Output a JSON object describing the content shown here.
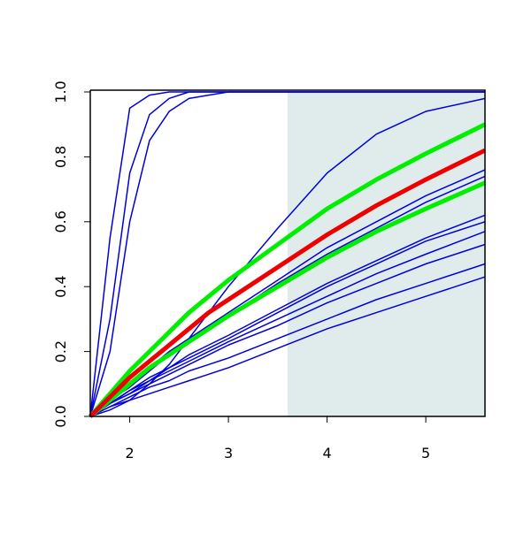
{
  "chart_data": {
    "type": "line",
    "x": [
      1.6,
      1.8,
      2.0,
      2.2,
      2.4,
      2.6,
      2.8,
      3.0,
      3.5,
      4.0,
      4.5,
      5.0,
      5.6
    ],
    "series": [
      {
        "color": "#0000dd",
        "width": 1.5,
        "values": [
          0,
          0.55,
          0.95,
          0.99,
          1,
          1,
          1,
          1,
          1,
          1,
          1,
          1,
          1
        ]
      },
      {
        "color": "#0000dd",
        "width": 1.5,
        "values": [
          0,
          0.3,
          0.75,
          0.93,
          0.98,
          1,
          1,
          1,
          1,
          1,
          1,
          1,
          1
        ]
      },
      {
        "color": "#0000dd",
        "width": 1.5,
        "values": [
          0,
          0.2,
          0.6,
          0.85,
          0.94,
          0.98,
          0.99,
          1,
          1,
          1,
          1,
          1,
          1
        ]
      },
      {
        "color": "#0000dd",
        "width": 1.5,
        "values": [
          0,
          0.02,
          0.05,
          0.1,
          0.16,
          0.24,
          0.32,
          0.4,
          0.58,
          0.75,
          0.87,
          0.94,
          0.98
        ]
      },
      {
        "color": "#0000dd",
        "width": 1.5,
        "values": [
          0,
          0.05,
          0.1,
          0.15,
          0.2,
          0.24,
          0.28,
          0.32,
          0.42,
          0.52,
          0.6,
          0.68,
          0.76
        ]
      },
      {
        "color": "#0000dd",
        "width": 1.5,
        "values": [
          0,
          0.05,
          0.09,
          0.14,
          0.19,
          0.23,
          0.27,
          0.31,
          0.41,
          0.5,
          0.58,
          0.66,
          0.74
        ]
      },
      {
        "color": "#0000dd",
        "width": 1.5,
        "values": [
          0,
          0.04,
          0.08,
          0.12,
          0.15,
          0.19,
          0.22,
          0.25,
          0.33,
          0.41,
          0.48,
          0.55,
          0.62
        ]
      },
      {
        "color": "#0000dd",
        "width": 1.5,
        "values": [
          0,
          0.04,
          0.08,
          0.11,
          0.15,
          0.18,
          0.21,
          0.24,
          0.32,
          0.4,
          0.47,
          0.54,
          0.6
        ]
      },
      {
        "color": "#0000dd",
        "width": 1.5,
        "values": [
          0,
          0.04,
          0.07,
          0.11,
          0.14,
          0.17,
          0.2,
          0.23,
          0.3,
          0.37,
          0.44,
          0.5,
          0.57
        ]
      },
      {
        "color": "#0000dd",
        "width": 1.5,
        "values": [
          0,
          0.04,
          0.07,
          0.1,
          0.13,
          0.16,
          0.19,
          0.22,
          0.28,
          0.35,
          0.41,
          0.47,
          0.53
        ]
      },
      {
        "color": "#0000dd",
        "width": 1.5,
        "values": [
          0,
          0.03,
          0.06,
          0.09,
          0.11,
          0.14,
          0.16,
          0.18,
          0.24,
          0.3,
          0.36,
          0.41,
          0.47
        ]
      },
      {
        "color": "#0000dd",
        "width": 1.5,
        "values": [
          0,
          0.03,
          0.05,
          0.07,
          0.09,
          0.11,
          0.13,
          0.15,
          0.21,
          0.27,
          0.32,
          0.37,
          0.43
        ]
      },
      {
        "color": "#00ee00",
        "width": 5,
        "values": [
          0,
          0.07,
          0.14,
          0.2,
          0.26,
          0.32,
          0.37,
          0.42,
          0.53,
          0.64,
          0.73,
          0.81,
          0.9
        ]
      },
      {
        "color": "#00ee00",
        "width": 5,
        "values": [
          0,
          0.05,
          0.1,
          0.15,
          0.19,
          0.23,
          0.27,
          0.31,
          0.4,
          0.49,
          0.57,
          0.64,
          0.72
        ]
      },
      {
        "color": "#ee0000",
        "width": 5,
        "values": [
          0,
          0.06,
          0.12,
          0.17,
          0.22,
          0.27,
          0.32,
          0.36,
          0.46,
          0.56,
          0.65,
          0.73,
          0.82
        ]
      }
    ],
    "highlight_x": [
      3.6,
      5.6
    ],
    "highlight_color": "#e0ecec",
    "xlim": [
      1.6,
      5.6
    ],
    "ylim": [
      0,
      1
    ],
    "xticks": [
      2,
      3,
      4,
      5
    ],
    "yticks": [
      {
        "value": 0,
        "label": "0.0"
      },
      0.2,
      0.4,
      0.6,
      0.8,
      {
        "value": 1,
        "label": "1.0"
      }
    ]
  }
}
